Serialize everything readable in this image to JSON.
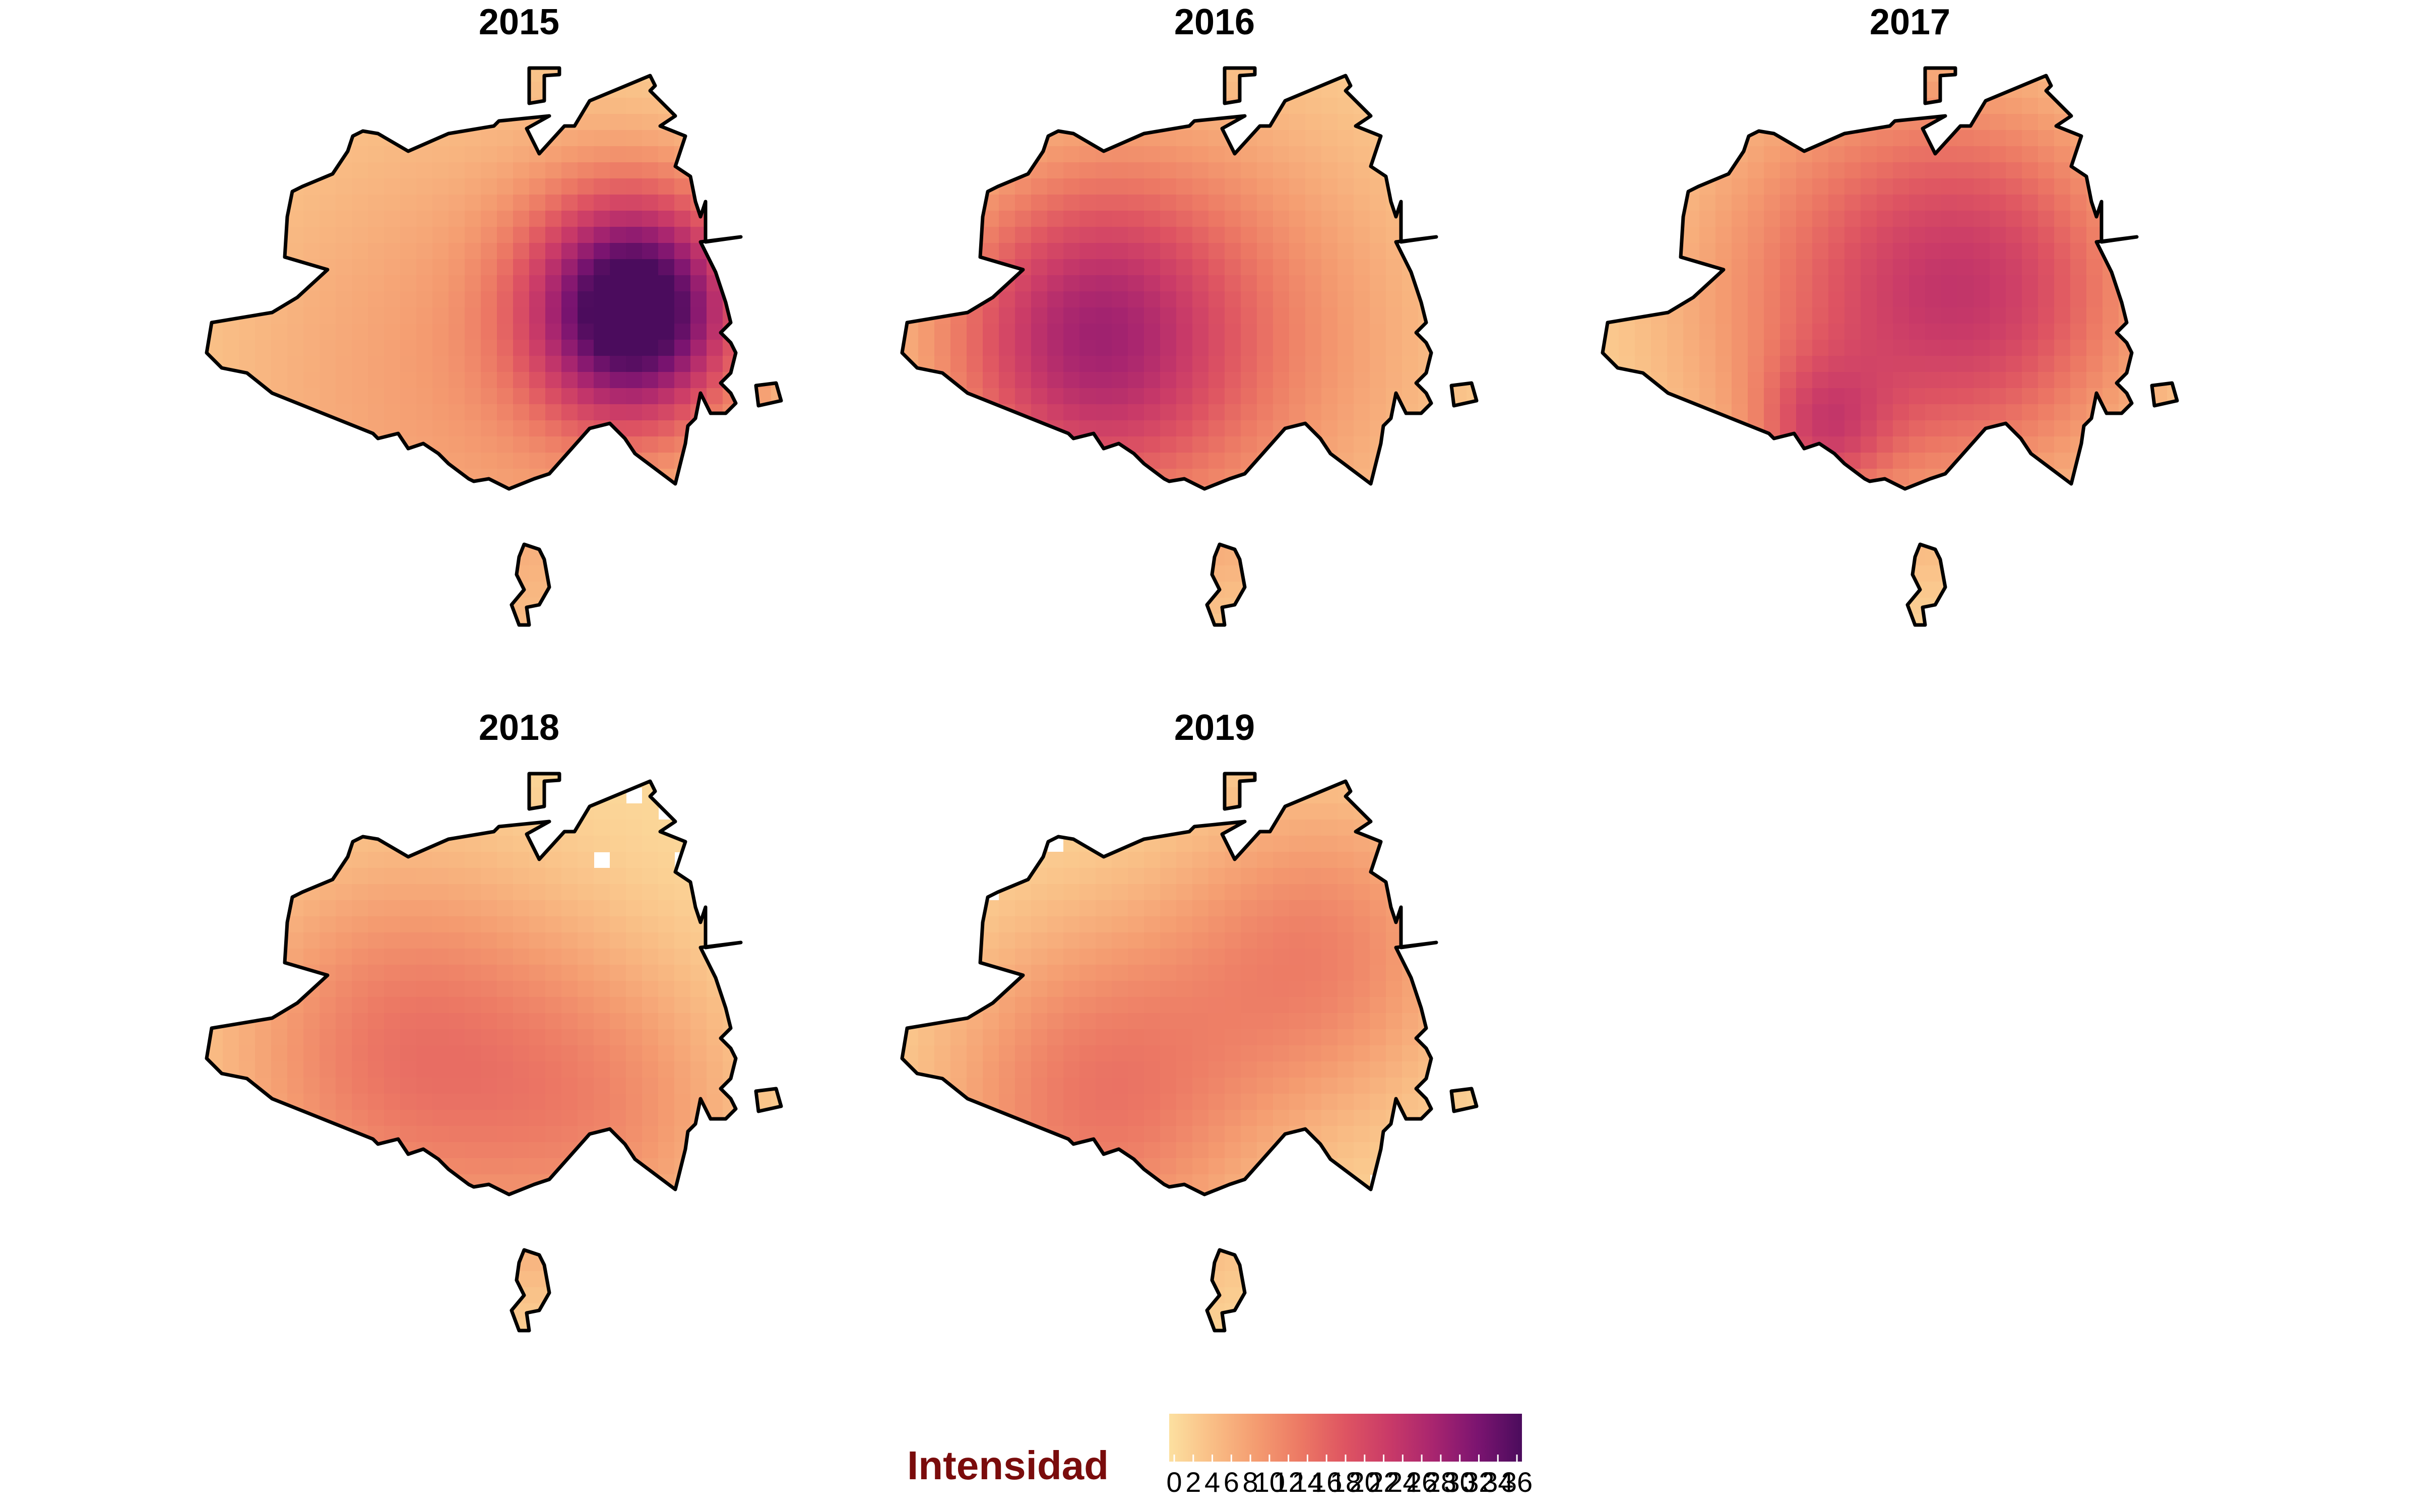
{
  "chart_data": {
    "type": "heatmap",
    "panels": [
      {
        "title": "2015",
        "hotspots": [
          {
            "col": 0.74,
            "row": 0.43,
            "peak": 36,
            "spread": 0.13
          },
          {
            "col": 0.45,
            "row": 0.55,
            "peak": 8,
            "spread": 0.35
          }
        ]
      },
      {
        "title": "2016",
        "hotspots": [
          {
            "col": 0.31,
            "row": 0.48,
            "peak": 20,
            "spread": 0.18
          },
          {
            "col": 0.55,
            "row": 0.48,
            "peak": 10,
            "spread": 0.28
          }
        ]
      },
      {
        "title": "2017",
        "hotspots": [
          {
            "col": 0.45,
            "row": 0.4,
            "peak": 12,
            "spread": 0.25
          },
          {
            "col": 0.68,
            "row": 0.4,
            "peak": 14,
            "spread": 0.2
          },
          {
            "col": 0.38,
            "row": 0.65,
            "peak": 12,
            "spread": 0.08
          }
        ]
      },
      {
        "title": "2018",
        "hotspots": [
          {
            "col": 0.34,
            "row": 0.5,
            "peak": 13,
            "spread": 0.22
          },
          {
            "col": 0.7,
            "row": 0.6,
            "peak": 8,
            "spread": 0.18
          }
        ]
      },
      {
        "title": "2019",
        "hotspots": [
          {
            "col": 0.34,
            "row": 0.58,
            "peak": 13,
            "spread": 0.2
          },
          {
            "col": 0.72,
            "row": 0.32,
            "peak": 11,
            "spread": 0.18
          }
        ]
      }
    ],
    "legend": {
      "title": "Intensidad",
      "ticks": [
        "0",
        "2",
        "4",
        "6",
        "8",
        "10",
        "12",
        "14",
        "16",
        "18",
        "20",
        "22",
        "24",
        "26",
        "28",
        "30",
        "32",
        "34",
        "36"
      ],
      "min": 0,
      "max": 36,
      "colors": [
        "#fce0a0",
        "#f9bd85",
        "#f49b70",
        "#ec7864",
        "#de5462",
        "#c93a68",
        "#a8256f",
        "#7b1470",
        "#4b0c5d"
      ]
    },
    "colors": {
      "boundary": "#000000",
      "legend_title": "#7a0c0c",
      "background": "#ffffff"
    }
  }
}
